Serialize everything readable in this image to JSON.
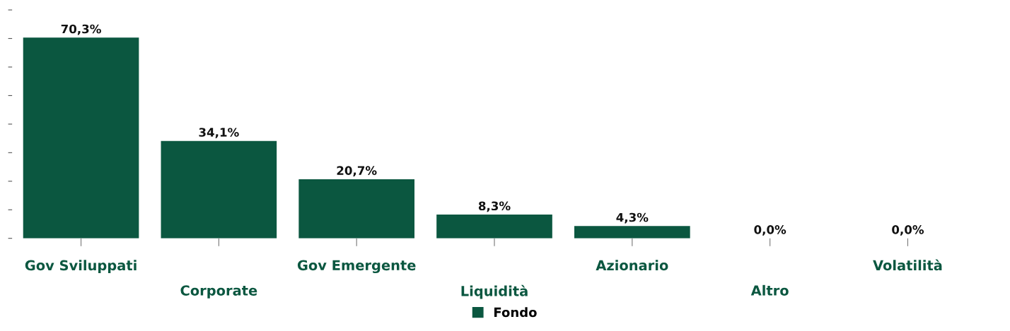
{
  "chart_data": {
    "type": "bar",
    "categories": [
      "Gov Sviluppati",
      "Corporate",
      "Gov Emergente",
      "Liquidità",
      "Azionario",
      "Altro",
      "Volatilità"
    ],
    "series": [
      {
        "name": "Fondo",
        "color": "#0b5740",
        "values": [
          70.3,
          34.1,
          20.7,
          8.3,
          4.3,
          0.0,
          0.0
        ],
        "value_labels": [
          "70,3%",
          "34,1%",
          "20,7%",
          "8,3%",
          "4,3%",
          "0,0%",
          "0,0%"
        ]
      }
    ],
    "yticks": [
      {
        "value": 0,
        "label": null
      },
      {
        "value": 10,
        "label": null
      },
      {
        "value": 20,
        "label": null
      },
      {
        "value": 30,
        "label": null
      },
      {
        "value": 40,
        "label": null
      },
      {
        "value": 50,
        "label": null
      },
      {
        "value": 60,
        "label": null
      },
      {
        "value": 70,
        "label": null
      },
      {
        "value": 80,
        "label": null
      }
    ],
    "tick_labels": "x",
    "grid": false,
    "legend": "bottom"
  }
}
